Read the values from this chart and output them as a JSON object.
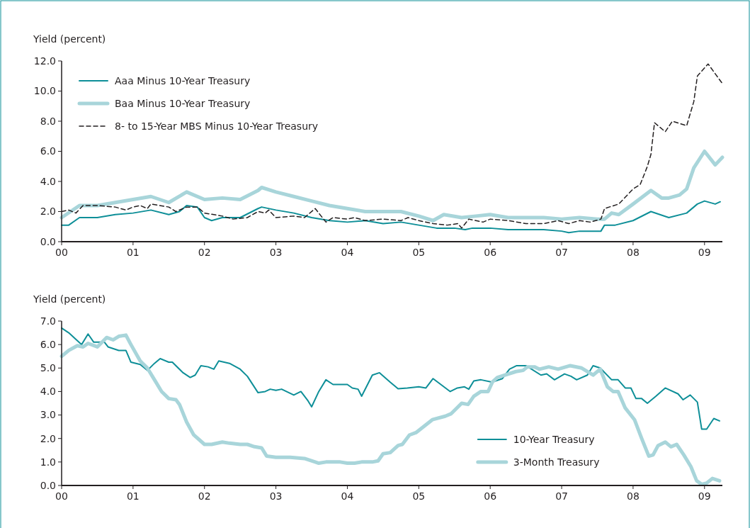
{
  "chart_data": [
    {
      "type": "line",
      "ylabel": "Yield (percent)",
      "xlim": [
        0,
        9.25
      ],
      "ylim": [
        0,
        12
      ],
      "xticks": [
        {
          "value": 0,
          "label": "00"
        },
        {
          "value": 1,
          "label": "01"
        },
        {
          "value": 2,
          "label": "02"
        },
        {
          "value": 3,
          "label": "03"
        },
        {
          "value": 4,
          "label": "04"
        },
        {
          "value": 5,
          "label": "05"
        },
        {
          "value": 6,
          "label": "06"
        },
        {
          "value": 7,
          "label": "07"
        },
        {
          "value": 8,
          "label": "08"
        },
        {
          "value": 9,
          "label": "09"
        }
      ],
      "yticks": [
        {
          "value": 0,
          "label": "0.0"
        },
        {
          "value": 2,
          "label": "2.0"
        },
        {
          "value": 4,
          "label": "4.0"
        },
        {
          "value": 6,
          "label": "6.0"
        },
        {
          "value": 8,
          "label": "8.0"
        },
        {
          "value": 10,
          "label": "10.0"
        },
        {
          "value": 12,
          "label": "12.0"
        }
      ],
      "legend": "top left",
      "grid": false,
      "series": [
        {
          "name": "Aaa Minus 10-Year Treasury",
          "color": "#0e8f98",
          "line_style": "solid",
          "x": [
            0,
            0.1,
            0.25,
            0.5,
            0.75,
            1,
            1.25,
            1.5,
            1.65,
            1.75,
            1.9,
            2,
            2.1,
            2.25,
            2.5,
            2.75,
            2.8,
            3,
            3.25,
            3.5,
            3.75,
            4,
            4.25,
            4.5,
            4.75,
            5,
            5.25,
            5.5,
            5.65,
            5.75,
            6,
            6.25,
            6.5,
            6.75,
            7,
            7.1,
            7.25,
            7.4,
            7.55,
            7.6,
            7.75,
            8,
            8.25,
            8.5,
            8.75,
            8.9,
            9,
            9.15,
            9.22
          ],
          "values": [
            1.1,
            1.1,
            1.6,
            1.6,
            1.8,
            1.9,
            2.1,
            1.8,
            2.0,
            2.4,
            2.3,
            1.6,
            1.4,
            1.6,
            1.6,
            2.2,
            2.3,
            2.1,
            1.9,
            1.6,
            1.4,
            1.3,
            1.4,
            1.2,
            1.3,
            1.1,
            0.9,
            0.9,
            0.8,
            0.9,
            0.9,
            0.8,
            0.8,
            0.8,
            0.7,
            0.6,
            0.7,
            0.7,
            0.7,
            1.1,
            1.1,
            1.4,
            2.0,
            1.6,
            1.9,
            2.5,
            2.7,
            2.5,
            2.65
          ]
        },
        {
          "name": "Baa Minus 10-Year Treasury",
          "color": "#a8d5da",
          "line_style": "solid",
          "x": [
            0,
            0.25,
            0.5,
            0.75,
            1,
            1.25,
            1.5,
            1.75,
            2,
            2.25,
            2.5,
            2.75,
            2.8,
            3,
            3.25,
            3.5,
            3.75,
            4,
            4.25,
            4.5,
            4.75,
            5,
            5.2,
            5.35,
            5.6,
            5.8,
            6,
            6.25,
            6.5,
            6.75,
            7,
            7.25,
            7.5,
            7.6,
            7.7,
            7.8,
            8,
            8.25,
            8.4,
            8.5,
            8.65,
            8.75,
            8.85,
            9,
            9.15,
            9.25
          ],
          "values": [
            1.6,
            2.4,
            2.4,
            2.6,
            2.8,
            3.0,
            2.6,
            3.3,
            2.8,
            2.9,
            2.8,
            3.4,
            3.6,
            3.3,
            3.0,
            2.7,
            2.4,
            2.2,
            2.0,
            2.0,
            2.0,
            1.7,
            1.4,
            1.8,
            1.6,
            1.7,
            1.8,
            1.6,
            1.6,
            1.6,
            1.5,
            1.6,
            1.5,
            1.5,
            1.9,
            1.8,
            2.5,
            3.4,
            2.9,
            2.9,
            3.1,
            3.5,
            4.9,
            6.0,
            5.1,
            5.6
          ]
        },
        {
          "name": "8- to 15-Year MBS Minus 10-Year Treasury",
          "color": "#231f20",
          "line_style": "dashed",
          "x": [
            0,
            0.1,
            0.2,
            0.3,
            0.5,
            0.75,
            0.9,
            1,
            1.1,
            1.2,
            1.25,
            1.5,
            1.6,
            1.75,
            1.9,
            2,
            2.25,
            2.4,
            2.6,
            2.75,
            2.85,
            2.9,
            3,
            3.25,
            3.4,
            3.55,
            3.7,
            3.8,
            4,
            4.1,
            4.25,
            4.5,
            4.75,
            4.85,
            5,
            5.2,
            5.4,
            5.55,
            5.6,
            5.7,
            5.9,
            6,
            6.25,
            6.5,
            6.75,
            6.95,
            7.1,
            7.25,
            7.4,
            7.55,
            7.6,
            7.8,
            8,
            8.1,
            8.2,
            8.25,
            8.3,
            8.45,
            8.55,
            8.75,
            8.85,
            8.9,
            9.05,
            9.25
          ],
          "values": [
            2.0,
            2.1,
            1.9,
            2.4,
            2.4,
            2.3,
            2.1,
            2.3,
            2.4,
            2.2,
            2.5,
            2.3,
            2.0,
            2.3,
            2.3,
            1.9,
            1.7,
            1.5,
            1.6,
            2.0,
            1.9,
            2.1,
            1.6,
            1.7,
            1.6,
            2.2,
            1.3,
            1.6,
            1.5,
            1.6,
            1.4,
            1.5,
            1.4,
            1.6,
            1.4,
            1.2,
            1.1,
            1.2,
            0.9,
            1.5,
            1.3,
            1.5,
            1.4,
            1.2,
            1.2,
            1.4,
            1.2,
            1.4,
            1.3,
            1.5,
            2.2,
            2.5,
            3.5,
            3.8,
            5.0,
            5.8,
            7.9,
            7.3,
            8.0,
            7.7,
            9.3,
            11.0,
            11.8,
            10.5
          ]
        }
      ]
    },
    {
      "type": "line",
      "ylabel": "Yield (percent)",
      "xlim": [
        0,
        9.25
      ],
      "ylim": [
        0,
        7
      ],
      "xticks": [
        {
          "value": 0,
          "label": "00"
        },
        {
          "value": 1,
          "label": "01"
        },
        {
          "value": 2,
          "label": "02"
        },
        {
          "value": 3,
          "label": "03"
        },
        {
          "value": 4,
          "label": "04"
        },
        {
          "value": 5,
          "label": "05"
        },
        {
          "value": 6,
          "label": "06"
        },
        {
          "value": 7,
          "label": "07"
        },
        {
          "value": 8,
          "label": "08"
        },
        {
          "value": 9,
          "label": "09"
        }
      ],
      "yticks": [
        {
          "value": 0,
          "label": "0.0"
        },
        {
          "value": 1,
          "label": "1.0"
        },
        {
          "value": 2,
          "label": "2.0"
        },
        {
          "value": 3,
          "label": "3.0"
        },
        {
          "value": 4,
          "label": "4.0"
        },
        {
          "value": 5,
          "label": "5.0"
        },
        {
          "value": 6,
          "label": "6.0"
        },
        {
          "value": 7,
          "label": "7.0"
        }
      ],
      "legend": "bottom right",
      "grid": false,
      "series": [
        {
          "name": "10-Year Treasury",
          "color": "#0e8f98",
          "line_style": "solid",
          "x": [
            0,
            0.1,
            0.28,
            0.37,
            0.45,
            0.6,
            0.65,
            0.8,
            0.9,
            0.97,
            1.1,
            1.2,
            1.3,
            1.38,
            1.5,
            1.55,
            1.7,
            1.8,
            1.87,
            1.95,
            2.05,
            2.13,
            2.2,
            2.35,
            2.5,
            2.6,
            2.75,
            2.85,
            2.92,
            3,
            3.08,
            3.25,
            3.35,
            3.45,
            3.5,
            3.6,
            3.7,
            3.8,
            4,
            4.07,
            4.15,
            4.2,
            4.35,
            4.45,
            4.6,
            4.71,
            4.84,
            5,
            5.1,
            5.2,
            5.44,
            5.54,
            5.64,
            5.7,
            5.77,
            5.87,
            6.03,
            6.17,
            6.27,
            6.37,
            6.5,
            6.71,
            6.79,
            6.9,
            7.04,
            7.13,
            7.21,
            7.36,
            7.44,
            7.54,
            7.7,
            7.79,
            7.89,
            7.97,
            8.04,
            8.12,
            8.2,
            8.32,
            8.45,
            8.63,
            8.7,
            8.8,
            8.9,
            8.96,
            9.03,
            9.13,
            9.21
          ],
          "values": [
            6.7,
            6.5,
            6.0,
            6.45,
            6.1,
            6.1,
            5.9,
            5.75,
            5.75,
            5.25,
            5.15,
            4.9,
            5.2,
            5.4,
            5.25,
            5.25,
            4.8,
            4.6,
            4.7,
            5.1,
            5.05,
            4.95,
            5.3,
            5.2,
            4.95,
            4.65,
            3.95,
            4.0,
            4.1,
            4.05,
            4.1,
            3.85,
            4.0,
            3.6,
            3.35,
            4.0,
            4.5,
            4.3,
            4.3,
            4.15,
            4.1,
            3.8,
            4.7,
            4.8,
            4.4,
            4.12,
            4.15,
            4.2,
            4.15,
            4.55,
            4.0,
            4.15,
            4.2,
            4.1,
            4.45,
            4.5,
            4.4,
            4.55,
            4.95,
            5.1,
            5.1,
            4.7,
            4.75,
            4.5,
            4.75,
            4.65,
            4.5,
            4.7,
            5.1,
            5.0,
            4.5,
            4.5,
            4.15,
            4.15,
            3.7,
            3.7,
            3.5,
            3.8,
            4.15,
            3.9,
            3.65,
            3.85,
            3.55,
            2.4,
            2.4,
            2.85,
            2.75
          ]
        },
        {
          "name": "3-Month Treasury",
          "color": "#a8d5da",
          "line_style": "solid",
          "x": [
            0,
            0.1,
            0.22,
            0.3,
            0.37,
            0.5,
            0.63,
            0.72,
            0.8,
            0.9,
            0.97,
            1.1,
            1.2,
            1.3,
            1.4,
            1.5,
            1.6,
            1.65,
            1.75,
            1.85,
            2,
            2.1,
            2.25,
            2.35,
            2.5,
            2.6,
            2.7,
            2.8,
            2.87,
            3,
            3.2,
            3.4,
            3.55,
            3.6,
            3.7,
            3.9,
            4,
            4.1,
            4.2,
            4.35,
            4.43,
            4.5,
            4.6,
            4.71,
            4.77,
            4.87,
            4.96,
            5.19,
            5.37,
            5.45,
            5.6,
            5.69,
            5.77,
            5.87,
            5.97,
            6.03,
            6.1,
            6.36,
            6.46,
            6.52,
            6.62,
            6.69,
            6.82,
            6.95,
            7.12,
            7.28,
            7.44,
            7.54,
            7.64,
            7.72,
            7.79,
            7.89,
            8.02,
            8.12,
            8.22,
            8.28,
            8.35,
            8.45,
            8.53,
            8.61,
            8.71,
            8.81,
            8.89,
            8.96,
            9.03,
            9.11,
            9.21
          ],
          "values": [
            5.5,
            5.75,
            5.95,
            5.9,
            6.05,
            5.9,
            6.3,
            6.2,
            6.35,
            6.4,
            6.0,
            5.3,
            5.0,
            4.5,
            4.0,
            3.7,
            3.65,
            3.45,
            2.7,
            2.15,
            1.75,
            1.75,
            1.85,
            1.8,
            1.75,
            1.75,
            1.65,
            1.6,
            1.25,
            1.2,
            1.2,
            1.15,
            1.0,
            0.95,
            1.0,
            1.0,
            0.95,
            0.95,
            1.0,
            1.0,
            1.05,
            1.35,
            1.4,
            1.7,
            1.75,
            2.15,
            2.25,
            2.8,
            2.95,
            3.05,
            3.5,
            3.45,
            3.8,
            4.0,
            4.0,
            4.4,
            4.6,
            4.85,
            4.9,
            5.05,
            5.05,
            4.95,
            5.05,
            4.95,
            5.1,
            5.0,
            4.7,
            4.95,
            4.2,
            4.0,
            4.0,
            3.3,
            2.8,
            2.0,
            1.25,
            1.3,
            1.7,
            1.85,
            1.65,
            1.75,
            1.3,
            0.8,
            0.2,
            0.05,
            0.1,
            0.3,
            0.2
          ]
        }
      ]
    }
  ]
}
